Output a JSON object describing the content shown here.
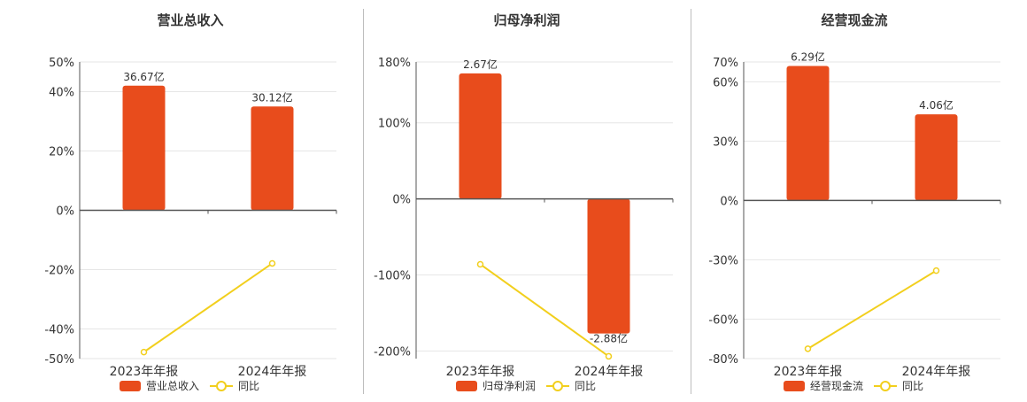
{
  "colors": {
    "bar": "#e84c1c",
    "line": "#f2cf1d",
    "grid": "#e6e6e6",
    "axis": "#555555",
    "text": "#333333"
  },
  "legend_yoy_label": "同比",
  "chart_data": [
    {
      "type": "bar",
      "title": "营业总收入",
      "categories": [
        "2023年年报",
        "2024年年报"
      ],
      "series": [
        {
          "name": "营业总收入",
          "type": "bar",
          "values": [
            42.0,
            35.0
          ],
          "labels": [
            "36.67亿",
            "30.12亿"
          ]
        },
        {
          "name": "同比",
          "type": "line",
          "values": [
            -47.8,
            -17.9
          ]
        }
      ],
      "yticks": [
        50,
        40,
        20,
        0,
        -20,
        -40,
        -50
      ],
      "ylim": [
        -50,
        50
      ],
      "tick_suffix": "%",
      "legend": "bottom"
    },
    {
      "type": "bar",
      "title": "归母净利润",
      "categories": [
        "2023年年报",
        "2024年年报"
      ],
      "series": [
        {
          "name": "归母净利润",
          "type": "bar",
          "values": [
            165,
            -177
          ],
          "labels": [
            "2.67亿",
            "-2.88亿"
          ]
        },
        {
          "name": "同比",
          "type": "line",
          "values": [
            -86,
            -207
          ]
        }
      ],
      "yticks": [
        180,
        100,
        0,
        -100,
        -200
      ],
      "ylim": [
        -210,
        180
      ],
      "tick_suffix": "%",
      "legend": "bottom"
    },
    {
      "type": "bar",
      "title": "经营现金流",
      "categories": [
        "2023年年报",
        "2024年年报"
      ],
      "series": [
        {
          "name": "经营现金流",
          "type": "bar",
          "values": [
            68,
            43.5
          ],
          "labels": [
            "6.29亿",
            "4.06亿"
          ]
        },
        {
          "name": "同比",
          "type": "line",
          "values": [
            -75,
            -35.5
          ]
        }
      ],
      "yticks": [
        70,
        60,
        30,
        0,
        -30,
        -60,
        -80
      ],
      "ylim": [
        -80,
        70
      ],
      "tick_suffix": "%",
      "legend": "bottom"
    }
  ]
}
